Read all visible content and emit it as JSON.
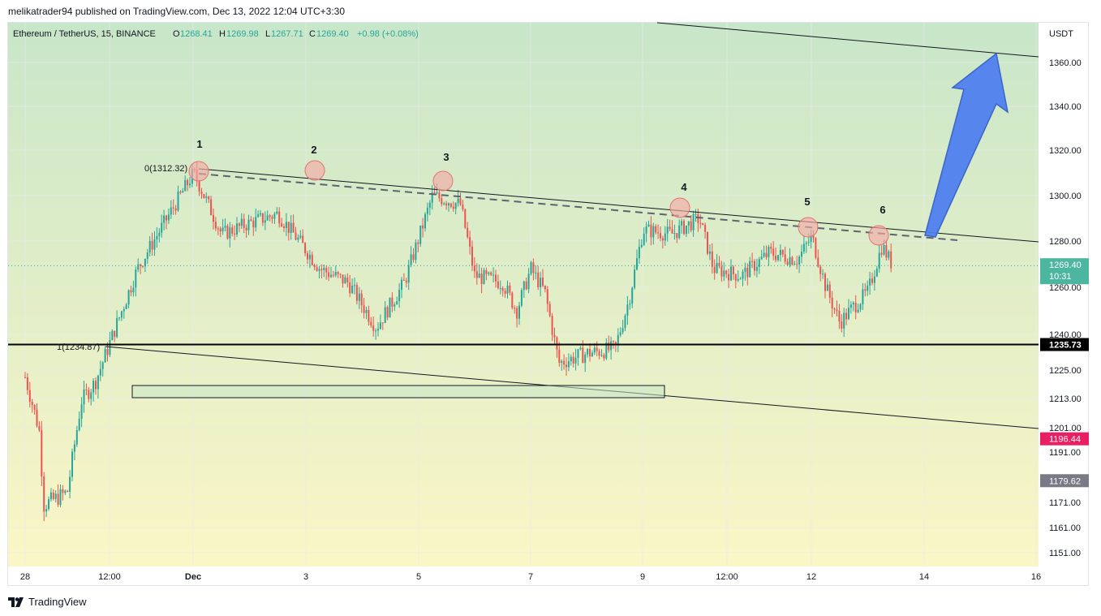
{
  "published": "melikatrader94 published on TradingView.com, Dec 13, 2022 12:04 UTC+3:30",
  "brand": "TradingView",
  "ohlc": {
    "symbol": "Ethereum / TetherUS, 15, BINANCE",
    "o_label": "O",
    "o": "1268.41",
    "h_label": "H",
    "h": "1269.98",
    "l_label": "L",
    "l": "1267.71",
    "c_label": "C",
    "c": "1269.40",
    "change": "+0.98 (+0.08%)"
  },
  "colors": {
    "up": "#26a69a",
    "down": "#ef5350",
    "grid": "#e9ecef",
    "bg_top": "#c8e6c9",
    "bg_bottom": "#fbf6c6",
    "arrow": "#4f7ff0",
    "circle": "#f3aaa7",
    "price_badge": "#4db6a1",
    "red_badge": "#e91e63",
    "gray_badge": "#787b86"
  },
  "chart_data": {
    "type": "candlestick",
    "title": "Ethereum / TetherUS, 15, BINANCE",
    "currency": "USDT",
    "y_tick_labels": [
      "1360.00",
      "1340.00",
      "1320.00",
      "1300.00",
      "1280.00",
      "1260.00",
      "1240.00",
      "1225.00",
      "1213.00",
      "1201.00",
      "1191.00",
      "1171.00",
      "1161.00",
      "1151.00"
    ],
    "x_tick_labels": [
      "28",
      "12:00",
      "Dec",
      "3",
      "5",
      "7",
      "9",
      "12:00",
      "12",
      "14",
      "16"
    ],
    "price_badges": [
      {
        "label": "1269.40",
        "sub": "10:31",
        "price": 1269.4,
        "kind": "current"
      },
      {
        "label": "1235.73",
        "price": 1235.73,
        "kind": "level"
      },
      {
        "label": "1196.44",
        "price": 1196.44,
        "kind": "red"
      },
      {
        "label": "1179.62",
        "price": 1179.62,
        "kind": "gray"
      }
    ],
    "touch_points": [
      {
        "label": "1",
        "x": "Dec 1",
        "price": 1311
      },
      {
        "label": "2",
        "x": "Dec 2",
        "price": 1310
      },
      {
        "label": "3",
        "x": "Dec 5",
        "price": 1306
      },
      {
        "label": "4",
        "x": "Dec 9",
        "price": 1295
      },
      {
        "label": "5",
        "x": "Dec 12",
        "price": 1286
      },
      {
        "label": "6",
        "x": "Dec 13",
        "price": 1283
      }
    ],
    "fib_labels": [
      {
        "text": "0(1312.32)",
        "price": 1312.32
      },
      {
        "text": "1(1234.87)",
        "price": 1234.87
      }
    ],
    "horizontal_level": 1235.73,
    "series_path": [
      {
        "x": "Nov 28 00:00",
        "y": 1222
      },
      {
        "x": "Nov 28 06:00",
        "y": 1200
      },
      {
        "x": "Nov 28 08:00",
        "y": 1170
      },
      {
        "x": "Nov 28 12:00",
        "y": 1172
      },
      {
        "x": "Nov 28 18:00",
        "y": 1175
      },
      {
        "x": "Nov 29 00:00",
        "y": 1212
      },
      {
        "x": "Nov 29 06:00",
        "y": 1220
      },
      {
        "x": "Nov 30 00:00",
        "y": 1268
      },
      {
        "x": "Dec 1 00:00",
        "y": 1310
      },
      {
        "x": "Dec 1 12:00",
        "y": 1283
      },
      {
        "x": "Dec 2 00:00",
        "y": 1288
      },
      {
        "x": "Dec 2 12:00",
        "y": 1292
      },
      {
        "x": "Dec 3 06:00",
        "y": 1268
      },
      {
        "x": "Dec 3 18:00",
        "y": 1262
      },
      {
        "x": "Dec 4 06:00",
        "y": 1243
      },
      {
        "x": "Dec 4 18:00",
        "y": 1262
      },
      {
        "x": "Dec 5 06:00",
        "y": 1300
      },
      {
        "x": "Dec 5 18:00",
        "y": 1296
      },
      {
        "x": "Dec 6 00:00",
        "y": 1265
      },
      {
        "x": "Dec 6 12:00",
        "y": 1262
      },
      {
        "x": "Dec 6 18:00",
        "y": 1250
      },
      {
        "x": "Dec 7 00:00",
        "y": 1268
      },
      {
        "x": "Dec 7 06:00",
        "y": 1258
      },
      {
        "x": "Dec 7 12:00",
        "y": 1228
      },
      {
        "x": "Dec 8 00:00",
        "y": 1232
      },
      {
        "x": "Dec 8 12:00",
        "y": 1234
      },
      {
        "x": "Dec 8 18:00",
        "y": 1255
      },
      {
        "x": "Dec 9 00:00",
        "y": 1285
      },
      {
        "x": "Dec 9 12:00",
        "y": 1283
      },
      {
        "x": "Dec 10 00:00",
        "y": 1290
      },
      {
        "x": "Dec 10 06:00",
        "y": 1268
      },
      {
        "x": "Dec 10 18:00",
        "y": 1265
      },
      {
        "x": "Dec 11 06:00",
        "y": 1275
      },
      {
        "x": "Dec 11 18:00",
        "y": 1272
      },
      {
        "x": "Dec 12 00:00",
        "y": 1282
      },
      {
        "x": "Dec 12 06:00",
        "y": 1260
      },
      {
        "x": "Dec 12 12:00",
        "y": 1245
      },
      {
        "x": "Dec 12 18:00",
        "y": 1252
      },
      {
        "x": "Dec 13 00:00",
        "y": 1258
      },
      {
        "x": "Dec 13 06:00",
        "y": 1278
      },
      {
        "x": "Dec 13 10:31",
        "y": 1269.4
      }
    ],
    "y_range": [
      1146,
      1368
    ],
    "grid": true
  }
}
